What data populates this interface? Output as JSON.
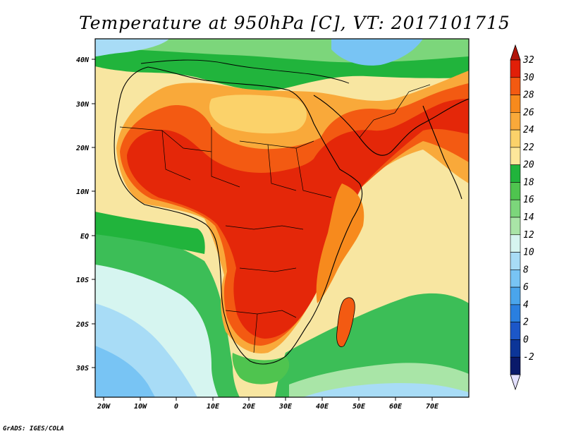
{
  "title": "Temperature at 950hPa [C], VT: 2017101715",
  "credit": "GrADS: IGES/COLA",
  "map": {
    "lat_labels": [
      "40N",
      "30N",
      "20N",
      "10N",
      "EQ",
      "10S",
      "20S",
      "30S"
    ],
    "lon_labels": [
      "20W",
      "10W",
      "0",
      "10E",
      "20E",
      "30E",
      "40E",
      "50E",
      "60E",
      "70E"
    ]
  },
  "colorbar": {
    "labels": [
      "32",
      "30",
      "28",
      "26",
      "24",
      "22",
      "20",
      "18",
      "16",
      "14",
      "12",
      "10",
      "8",
      "6",
      "4",
      "2",
      "0",
      "-2"
    ],
    "colors": [
      "#e11f08",
      "#f35a12",
      "#f78a1d",
      "#f9a93a",
      "#fbd26a",
      "#fde79a",
      "#21b43c",
      "#4fc44f",
      "#7cd67b",
      "#a9e5a7",
      "#d6f5f0",
      "#a8dcf6",
      "#78c4f4",
      "#4aa5ec",
      "#2a7fe0",
      "#1c57c8",
      "#0c3598",
      "#0a1a6a"
    ],
    "top_arrow_color": "#b0140a",
    "bottom_arrow_color": "#e3e0ff"
  }
}
